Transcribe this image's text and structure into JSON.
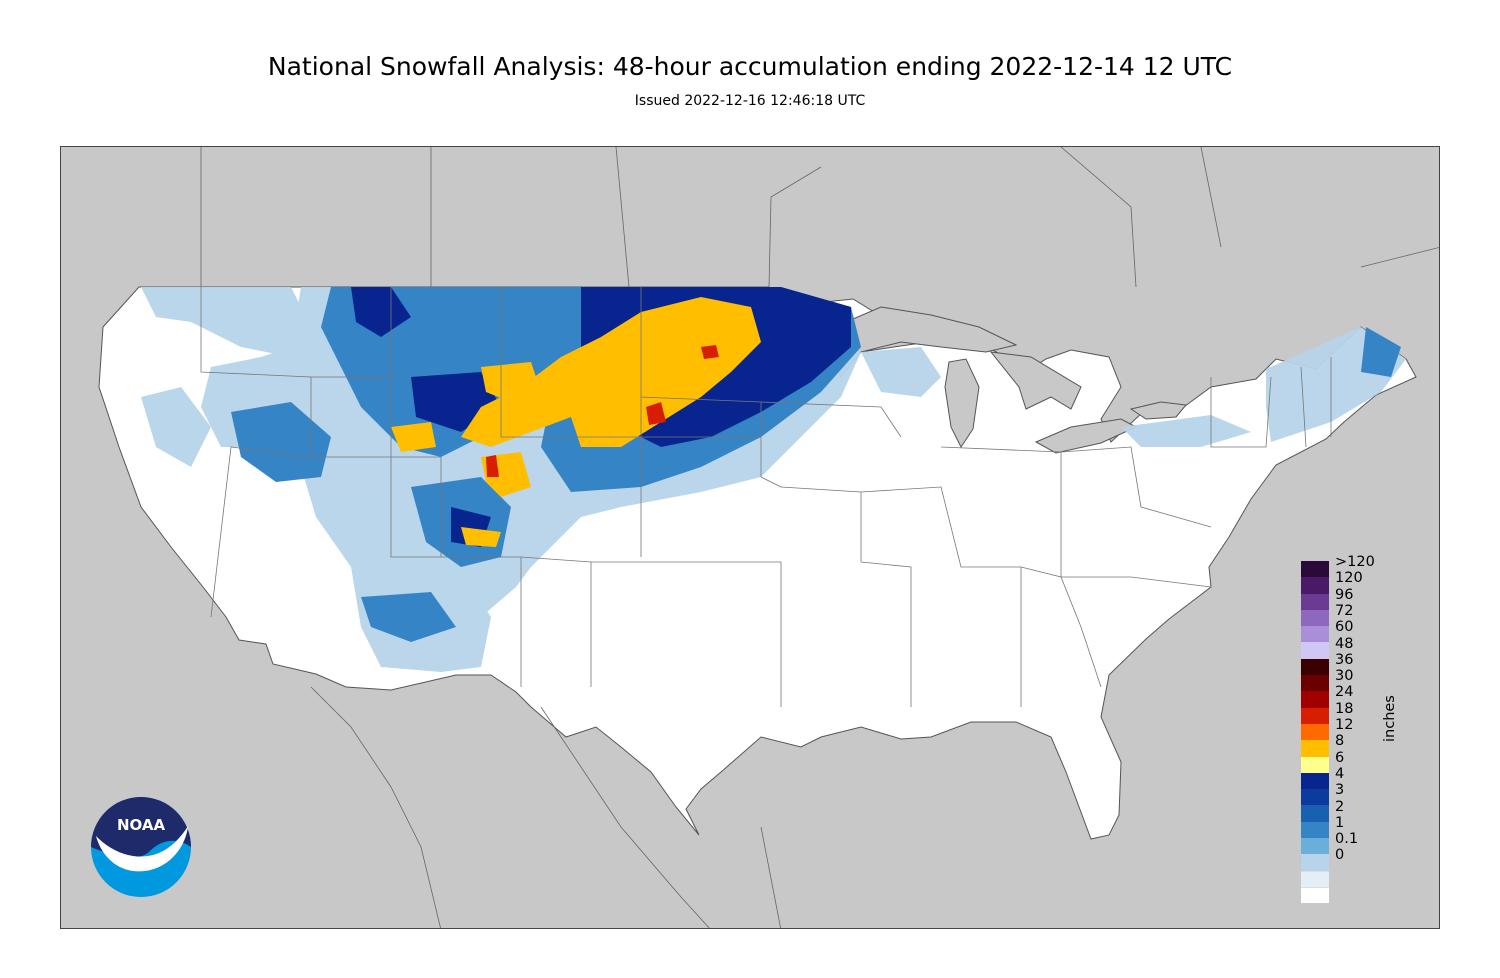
{
  "title": "National Snowfall Analysis: 48-hour accumulation ending 2022-12-14 12 UTC",
  "subtitle": "Issued 2022-12-16 12:46:18 UTC",
  "logo_text": "NOAA",
  "legend": {
    "unit": "inches",
    "bins": [
      {
        "label": ">120",
        "color": "#2a0a38"
      },
      {
        "label": "120",
        "color": "#4b1a66"
      },
      {
        "label": "96",
        "color": "#6a3b90"
      },
      {
        "label": "72",
        "color": "#8e67bf"
      },
      {
        "label": "60",
        "color": "#a98fd8"
      },
      {
        "label": "48",
        "color": "#cfc8f5"
      },
      {
        "label": "36",
        "color": "#3a0000"
      },
      {
        "label": "30",
        "color": "#6b0000"
      },
      {
        "label": "24",
        "color": "#a00000"
      },
      {
        "label": "18",
        "color": "#d81e00"
      },
      {
        "label": "12",
        "color": "#ff6a00"
      },
      {
        "label": "8",
        "color": "#ffbe00"
      },
      {
        "label": "6",
        "color": "#ffff8c"
      },
      {
        "label": "4",
        "color": "#08258f"
      },
      {
        "label": "3",
        "color": "#0b3b9c"
      },
      {
        "label": "2",
        "color": "#1861b0"
      },
      {
        "label": "1",
        "color": "#3584c6"
      },
      {
        "label": "0.1",
        "color": "#6aaed9"
      },
      {
        "label": "0",
        "color": "#b7d4ea"
      }
    ],
    "extra_bottom": [
      "#e4eef7",
      "#ffffff"
    ]
  }
}
